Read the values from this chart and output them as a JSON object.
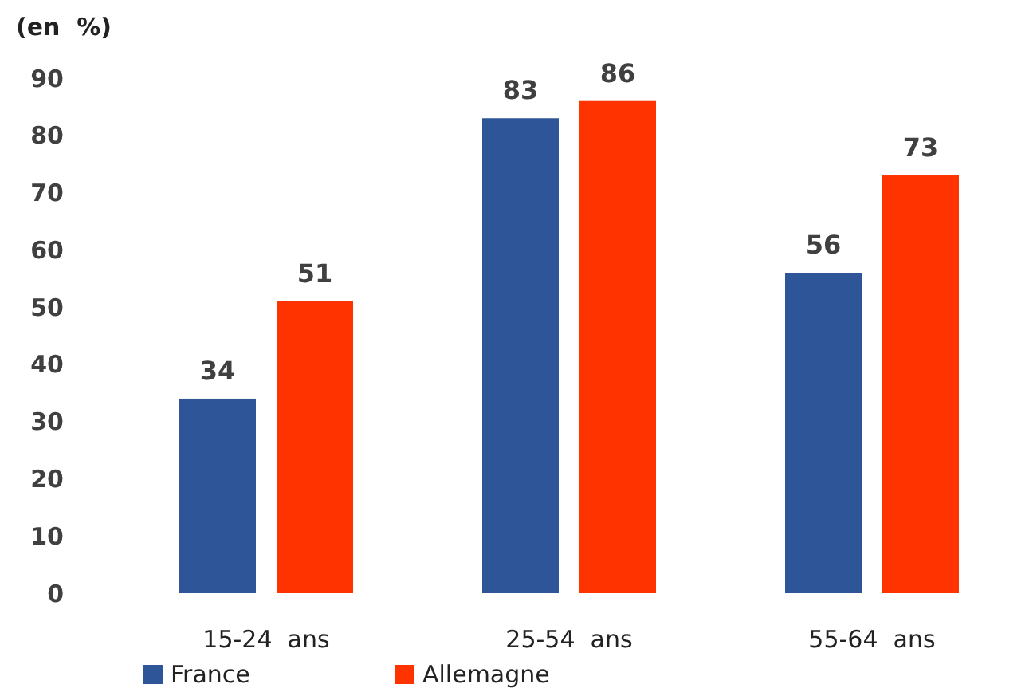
{
  "chart_data": {
    "type": "bar",
    "ylabel": "(en  %)",
    "categories": [
      "15-24  ans",
      "25-54  ans",
      "55-64  ans"
    ],
    "series": [
      {
        "name": "France",
        "color": "#2e5597",
        "values": [
          34,
          83,
          56
        ]
      },
      {
        "name": "Allemagne",
        "color": "#ff3300",
        "values": [
          51,
          86,
          73
        ]
      }
    ],
    "ylim": [
      0,
      90
    ],
    "yticks": [
      0,
      10,
      20,
      30,
      40,
      50,
      60,
      70,
      80,
      90
    ],
    "data_labels": true,
    "grid": false,
    "legend": "bottom left"
  }
}
